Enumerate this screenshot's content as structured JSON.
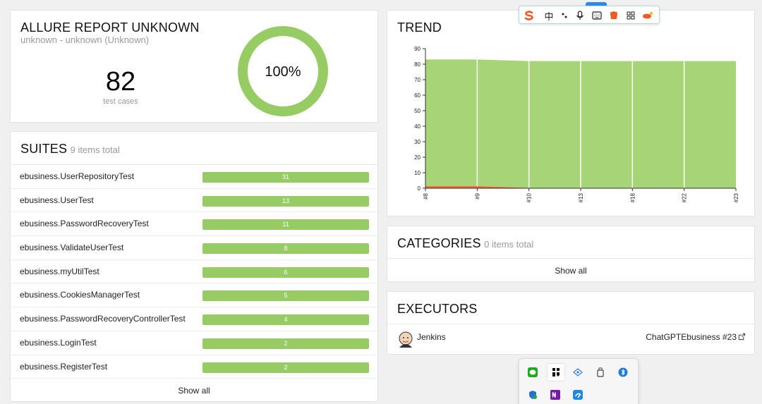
{
  "summary": {
    "title": "ALLURE REPORT UNKNOWN",
    "subtitle": "unknown - unknown (Unknown)",
    "test_count": "82",
    "test_count_label": "test cases",
    "pass_rate": "100%",
    "pass_color": "#97cc64"
  },
  "suites": {
    "title": "SUITES",
    "total": "9 items total",
    "items": [
      {
        "name": "ebusiness.UserRepositoryTest",
        "count": "31"
      },
      {
        "name": "ebusiness.UserTest",
        "count": "13"
      },
      {
        "name": "ebusiness.PasswordRecoveryTest",
        "count": "11"
      },
      {
        "name": "ebusiness.ValidateUserTest",
        "count": "8"
      },
      {
        "name": "ebusiness.myUtilTest",
        "count": "6"
      },
      {
        "name": "ebusiness.CookiesManagerTest",
        "count": "5"
      },
      {
        "name": "ebusiness.PasswordRecoveryControllerTest",
        "count": "4"
      },
      {
        "name": "ebusiness.LoginTest",
        "count": "2"
      },
      {
        "name": "ebusiness.RegisterTest",
        "count": "2"
      }
    ],
    "show_all": "Show all"
  },
  "trend": {
    "title": "TREND"
  },
  "chart_data": {
    "type": "area",
    "x": [
      "#8",
      "#9",
      "#10",
      "#13",
      "#18",
      "#22",
      "#23"
    ],
    "series": [
      {
        "values": [
          83,
          83,
          82,
          82,
          82,
          82,
          82
        ],
        "color": "#97cc64"
      },
      {
        "values": [
          1,
          1,
          0,
          0,
          0,
          0,
          0
        ],
        "color": "#fd5a3e"
      }
    ],
    "ylim": [
      0,
      90
    ],
    "yticks": [
      "0",
      "10",
      "20",
      "30",
      "40",
      "50",
      "60",
      "70",
      "80",
      "90"
    ]
  },
  "categories": {
    "title": "CATEGORIES",
    "total": "0 items total",
    "show_all": "Show all"
  },
  "executors": {
    "title": "EXECUTORS",
    "name": "Jenkins",
    "build": "ChatGPTEbusiness #23"
  },
  "ime_toolbar": {
    "lang_label": "中",
    "items": [
      "sogou-logo-icon",
      "language-icon",
      "punctuation-icon",
      "microphone-icon",
      "keyboard-icon",
      "skin-icon",
      "toolbox-icon",
      "settings-icon"
    ]
  },
  "tray": {
    "items": [
      "wechat-icon",
      "app-icon",
      "network-icon",
      "usb-drive-icon",
      "bluetooth-icon",
      "security-icon",
      "onenote-icon",
      "edit-app-icon"
    ]
  }
}
